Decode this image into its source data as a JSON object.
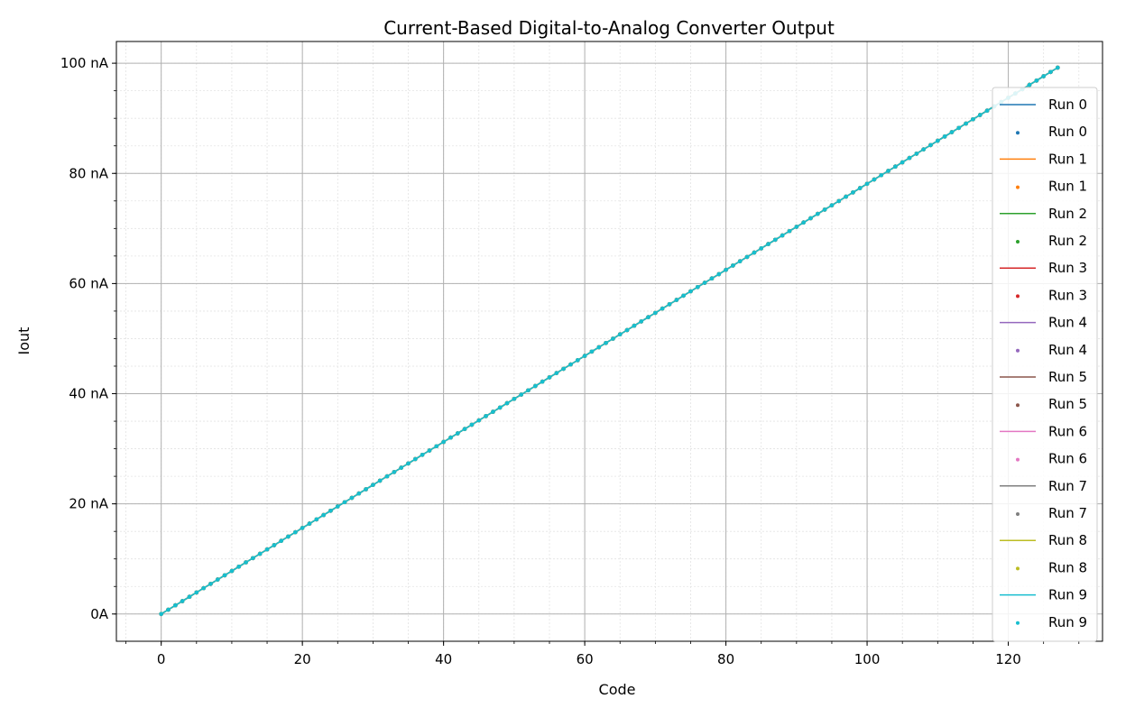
{
  "chart_data": {
    "type": "line",
    "title": "Current-Based Digital-to-Analog Converter Output",
    "xlabel": "Code",
    "ylabel": "Iout",
    "xlim": [
      -6.35,
      133.35
    ],
    "ylim": [
      -4.95,
      103.95
    ],
    "x_ticks": [
      0,
      20,
      40,
      60,
      80,
      100,
      120
    ],
    "x_tick_labels": [
      "0",
      "20",
      "40",
      "60",
      "80",
      "100",
      "120"
    ],
    "y_ticks": [
      0,
      20,
      40,
      60,
      80,
      100
    ],
    "y_tick_labels": [
      "0A",
      "20 nA",
      "40 nA",
      "60 nA",
      "80 nA",
      "100 nA"
    ],
    "y_unit": "nA",
    "x_minor_step": 5,
    "y_minor_step": 5,
    "grid": {
      "major": true,
      "minor": true
    },
    "legend_position": "right",
    "x_range": {
      "start": 0,
      "end": 127,
      "step": 1
    },
    "series": [
      {
        "name": "Run 0",
        "color": "#1f77b4",
        "start_value": 0,
        "end_value": 99.2
      },
      {
        "name": "Run 1",
        "color": "#ff7f0e",
        "start_value": 0,
        "end_value": 99.2
      },
      {
        "name": "Run 2",
        "color": "#2ca02c",
        "start_value": 0,
        "end_value": 99.2
      },
      {
        "name": "Run 3",
        "color": "#d62728",
        "start_value": 0,
        "end_value": 99.2
      },
      {
        "name": "Run 4",
        "color": "#9467bd",
        "start_value": 0,
        "end_value": 99.2
      },
      {
        "name": "Run 5",
        "color": "#8c564b",
        "start_value": 0,
        "end_value": 99.2
      },
      {
        "name": "Run 6",
        "color": "#e377c2",
        "start_value": 0,
        "end_value": 99.2
      },
      {
        "name": "Run 7",
        "color": "#7f7f7f",
        "start_value": 0,
        "end_value": 99.2
      },
      {
        "name": "Run 8",
        "color": "#bcbd22",
        "start_value": 0,
        "end_value": 99.2
      },
      {
        "name": "Run 9",
        "color": "#17becf",
        "start_value": 0,
        "end_value": 99.2
      }
    ],
    "legend_entries": [
      {
        "label": "Run 0",
        "kind": "line",
        "color": "#1f77b4"
      },
      {
        "label": "Run 0",
        "kind": "marker",
        "color": "#1f77b4"
      },
      {
        "label": "Run 1",
        "kind": "line",
        "color": "#ff7f0e"
      },
      {
        "label": "Run 1",
        "kind": "marker",
        "color": "#ff7f0e"
      },
      {
        "label": "Run 2",
        "kind": "line",
        "color": "#2ca02c"
      },
      {
        "label": "Run 2",
        "kind": "marker",
        "color": "#2ca02c"
      },
      {
        "label": "Run 3",
        "kind": "line",
        "color": "#d62728"
      },
      {
        "label": "Run 3",
        "kind": "marker",
        "color": "#d62728"
      },
      {
        "label": "Run 4",
        "kind": "line",
        "color": "#9467bd"
      },
      {
        "label": "Run 4",
        "kind": "marker",
        "color": "#9467bd"
      },
      {
        "label": "Run 5",
        "kind": "line",
        "color": "#8c564b"
      },
      {
        "label": "Run 5",
        "kind": "marker",
        "color": "#8c564b"
      },
      {
        "label": "Run 6",
        "kind": "line",
        "color": "#e377c2"
      },
      {
        "label": "Run 6",
        "kind": "marker",
        "color": "#e377c2"
      },
      {
        "label": "Run 7",
        "kind": "line",
        "color": "#7f7f7f"
      },
      {
        "label": "Run 7",
        "kind": "marker",
        "color": "#7f7f7f"
      },
      {
        "label": "Run 8",
        "kind": "line",
        "color": "#bcbd22"
      },
      {
        "label": "Run 8",
        "kind": "marker",
        "color": "#bcbd22"
      },
      {
        "label": "Run 9",
        "kind": "line",
        "color": "#17becf"
      },
      {
        "label": "Run 9",
        "kind": "marker",
        "color": "#17becf"
      }
    ]
  }
}
